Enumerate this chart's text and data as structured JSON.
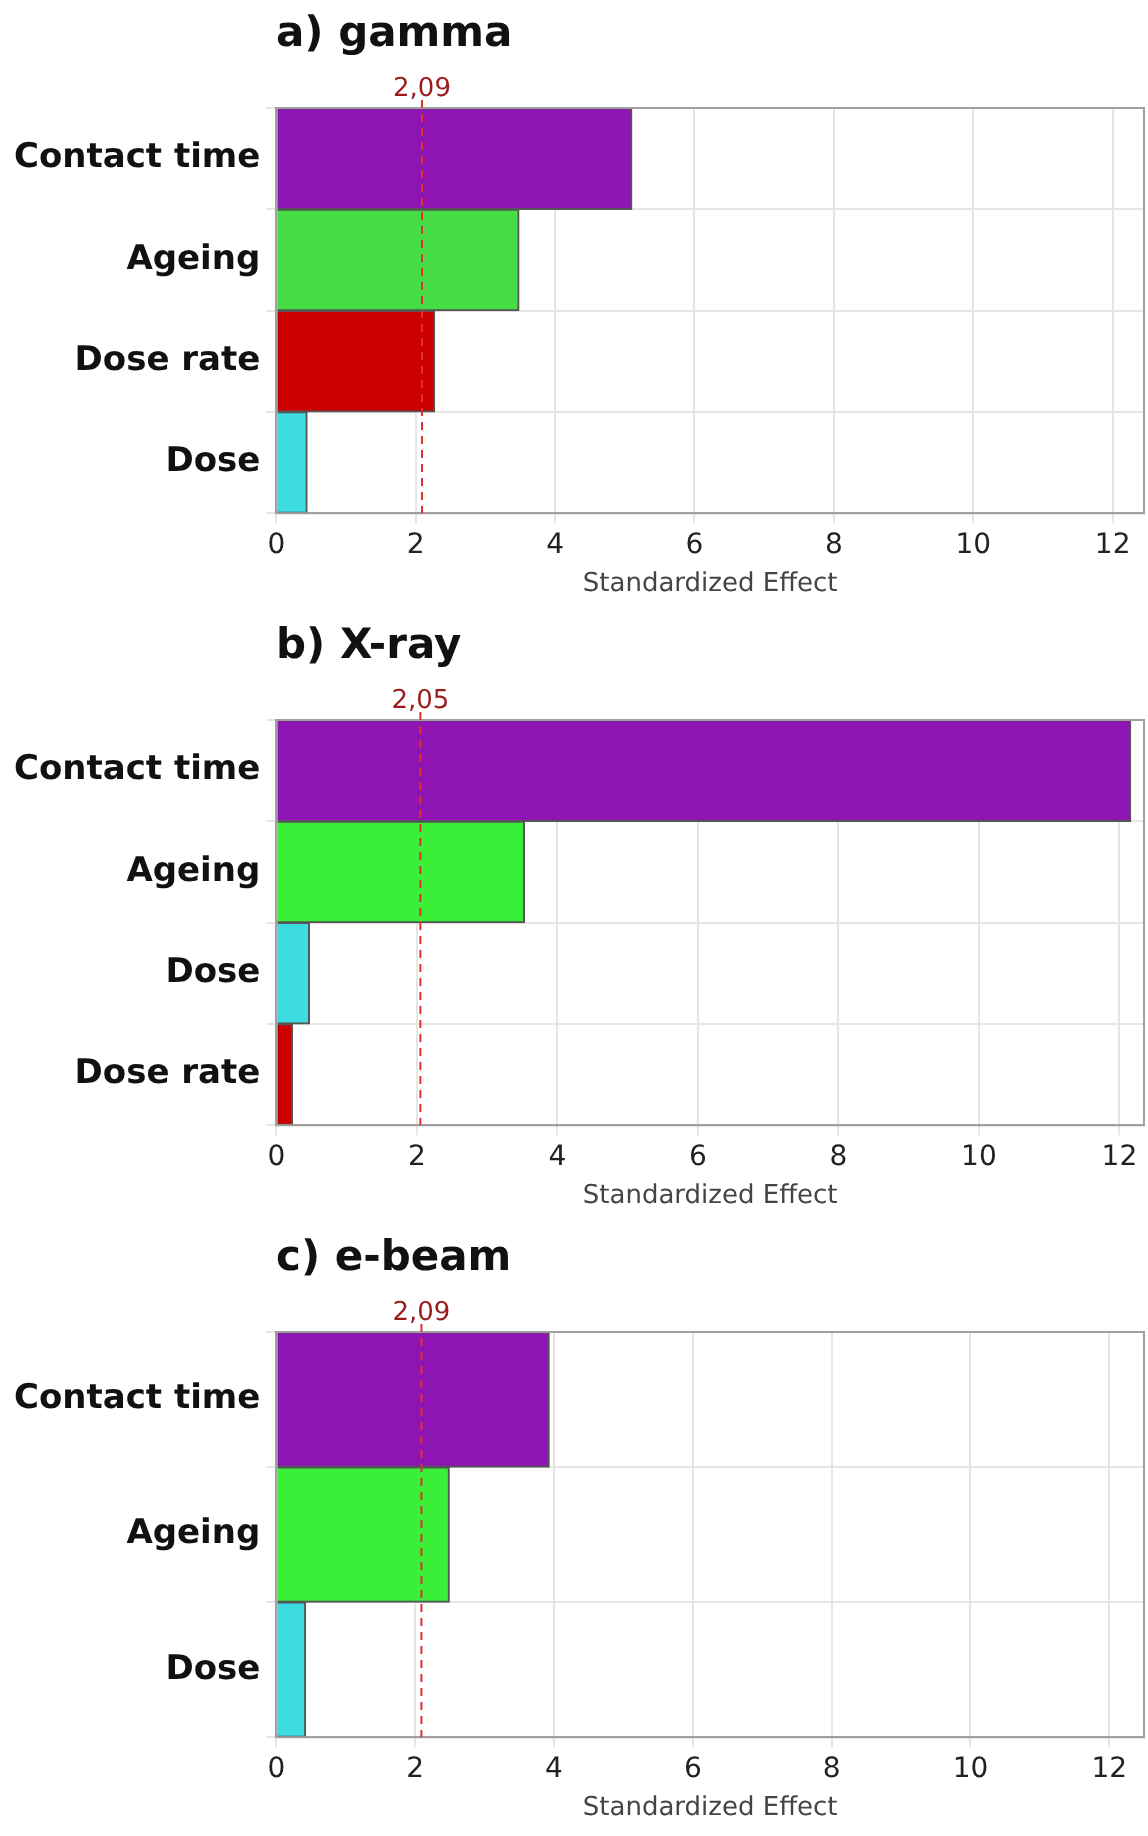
{
  "chart_data": [
    {
      "type": "bar",
      "orientation": "horizontal",
      "title": "a) gamma",
      "xlabel": "Standardized Effect",
      "categories": [
        "Contact time",
        "Ageing",
        "Dose rate",
        "Dose"
      ],
      "values": [
        5.1,
        3.48,
        2.27,
        0.44
      ],
      "colors": [
        "#8e14b4",
        "#46dc46",
        "#cc0000",
        "#3cdce0"
      ],
      "xlim": [
        0,
        12.45
      ],
      "xticks": [
        0,
        2,
        4,
        6,
        8,
        10,
        12
      ],
      "grid": true,
      "ref_lines": [
        {
          "axis": "x",
          "value": 2.09,
          "label": "2,09",
          "color": "#e03030",
          "line_style": "dashed"
        }
      ]
    },
    {
      "type": "bar",
      "orientation": "horizontal",
      "title": "b) X-ray",
      "xlabel": "Standardized Effect",
      "categories": [
        "Contact time",
        "Ageing",
        "Dose",
        "Dose rate"
      ],
      "values": [
        12.16,
        3.53,
        0.47,
        0.23
      ],
      "colors": [
        "#8e14b4",
        "#39f039",
        "#3cdce0",
        "#cc0000"
      ],
      "xlim": [
        0,
        12.35
      ],
      "xticks": [
        0,
        2,
        4,
        6,
        8,
        10,
        12
      ],
      "grid": true,
      "ref_lines": [
        {
          "axis": "x",
          "value": 2.05,
          "label": "2,05",
          "color": "#e03030",
          "line_style": "dashed"
        }
      ]
    },
    {
      "type": "bar",
      "orientation": "horizontal",
      "title": "c) e-beam",
      "xlabel": "Standardized Effect",
      "categories": [
        "Contact time",
        "Ageing",
        "Dose"
      ],
      "values": [
        3.93,
        2.49,
        0.42
      ],
      "colors": [
        "#8e14b4",
        "#39f039",
        "#3cdce0"
      ],
      "xlim": [
        0,
        12.5
      ],
      "xticks": [
        0,
        2,
        4,
        6,
        8,
        10,
        12
      ],
      "grid": true,
      "ref_lines": [
        {
          "axis": "x",
          "value": 2.09,
          "label": "2,09",
          "color": "#e03030",
          "line_style": "dashed"
        }
      ]
    }
  ]
}
